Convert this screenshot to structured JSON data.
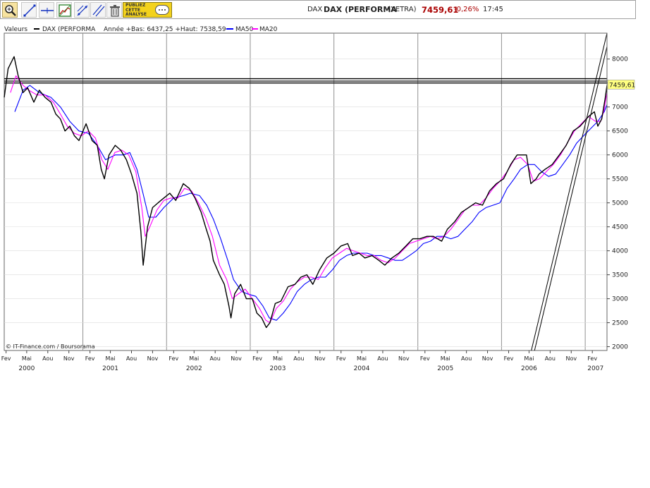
{
  "toolbar": {
    "tools": [
      {
        "name": "zoom-tool-icon",
        "active": true
      },
      {
        "name": "trend-line-tool-icon",
        "active": false
      },
      {
        "name": "horizontal-line-tool-icon",
        "active": false
      },
      {
        "name": "indicator-tool-icon",
        "active": false
      },
      {
        "name": "fibonacci-tool-icon",
        "active": false
      },
      {
        "name": "parallel-lines-tool-icon",
        "active": false
      },
      {
        "name": "delete-tool-icon",
        "active": false
      }
    ],
    "promo": {
      "line1": "PUBLIEZ",
      "line2": "CETTE",
      "line3": "ANALYSE"
    },
    "title": {
      "symbol": "DAX",
      "name": "DAX (PERFORMA",
      "exchange": "(XETRA)",
      "price": "7459,61",
      "change": "-0,26%",
      "time": "17:45"
    },
    "colors": {
      "price": "#aa0000",
      "change": "#aa0000"
    }
  },
  "chart_data": {
    "type": "line",
    "legend": {
      "label": "Valeurs",
      "series_name": "DAX (PERFORMA",
      "stats": "Année +Bas: 6437,25 +Haut: 7538,59",
      "ma50": "MA50",
      "ma20": "MA20",
      "colors": {
        "price": "#000000",
        "ma50": "#0000ff",
        "ma20": "#ff00ff"
      }
    },
    "ylim": [
      1920,
      8540
    ],
    "yticks": [
      2000,
      2500,
      3000,
      3500,
      4000,
      4500,
      5000,
      5500,
      6000,
      6500,
      7000,
      7500,
      8000
    ],
    "ytick_labels": [
      "2000",
      "2500",
      "3000",
      "3500",
      "4000",
      "4500",
      "5000",
      "5500",
      "6000",
      "6500",
      "7000",
      "7500",
      "8000"
    ],
    "last_price_label": "7459,61",
    "last_price": 7459.61,
    "horizontal_lines": [
      7590,
      7540,
      7500
    ],
    "x_start": "2000-01-24",
    "x_end": "2007-04-06",
    "month_ticks": [
      {
        "date": "2000-02-01",
        "label": "Fev"
      },
      {
        "date": "2000-05-01",
        "label": "Mai"
      },
      {
        "date": "2000-08-01",
        "label": "Aou"
      },
      {
        "date": "2000-11-01",
        "label": "Nov"
      },
      {
        "date": "2001-02-01",
        "label": "Fev"
      },
      {
        "date": "2001-05-01",
        "label": "Mai"
      },
      {
        "date": "2001-08-01",
        "label": "Aou"
      },
      {
        "date": "2001-11-01",
        "label": "Nov"
      },
      {
        "date": "2002-02-01",
        "label": "Fev"
      },
      {
        "date": "2002-05-01",
        "label": "Mai"
      },
      {
        "date": "2002-08-01",
        "label": "Aou"
      },
      {
        "date": "2002-11-01",
        "label": "Nov"
      },
      {
        "date": "2003-02-01",
        "label": "Fev"
      },
      {
        "date": "2003-05-01",
        "label": "Mai"
      },
      {
        "date": "2003-08-01",
        "label": "Aou"
      },
      {
        "date": "2003-11-01",
        "label": "Nov"
      },
      {
        "date": "2004-02-01",
        "label": "Fev"
      },
      {
        "date": "2004-05-01",
        "label": "Mai"
      },
      {
        "date": "2004-08-01",
        "label": "Aou"
      },
      {
        "date": "2004-11-01",
        "label": "Nov"
      },
      {
        "date": "2005-02-01",
        "label": "Fev"
      },
      {
        "date": "2005-05-01",
        "label": "Mai"
      },
      {
        "date": "2005-08-01",
        "label": "Aou"
      },
      {
        "date": "2005-11-01",
        "label": "Nov"
      },
      {
        "date": "2006-02-01",
        "label": "Fev"
      },
      {
        "date": "2006-05-01",
        "label": "Mai"
      },
      {
        "date": "2006-08-01",
        "label": "Aou"
      },
      {
        "date": "2006-11-01",
        "label": "Nov"
      },
      {
        "date": "2007-02-01",
        "label": "Fev"
      }
    ],
    "year_labels": [
      {
        "date": "2000-05-01",
        "label": "2000"
      },
      {
        "date": "2001-05-01",
        "label": "2001"
      },
      {
        "date": "2002-05-01",
        "label": "2002"
      },
      {
        "date": "2003-05-01",
        "label": "2003"
      },
      {
        "date": "2004-05-01",
        "label": "2004"
      },
      {
        "date": "2005-05-01",
        "label": "2005"
      },
      {
        "date": "2006-05-01",
        "label": "2006"
      },
      {
        "date": "2007-02-15",
        "label": "2007"
      }
    ],
    "year_boundaries": [
      "2001-01-01",
      "2002-01-01",
      "2003-01-01",
      "2004-01-01",
      "2005-01-01",
      "2006-01-01",
      "2007-01-01"
    ],
    "series": [
      {
        "name": "DAX (PERFORMA",
        "x": [
          "2000-01-24",
          "2000-02-10",
          "2000-03-07",
          "2000-03-25",
          "2000-04-15",
          "2000-05-05",
          "2000-06-01",
          "2000-06-25",
          "2000-07-20",
          "2000-08-15",
          "2000-09-05",
          "2000-09-25",
          "2000-10-15",
          "2000-11-05",
          "2000-11-25",
          "2000-12-15",
          "2001-01-15",
          "2001-02-10",
          "2001-03-05",
          "2001-03-22",
          "2001-04-05",
          "2001-04-25",
          "2001-05-22",
          "2001-06-15",
          "2001-07-10",
          "2001-08-01",
          "2001-08-25",
          "2001-09-11",
          "2001-09-21",
          "2001-10-10",
          "2001-11-01",
          "2001-11-25",
          "2001-12-20",
          "2002-01-15",
          "2002-02-10",
          "2002-03-15",
          "2002-04-10",
          "2002-05-05",
          "2002-06-01",
          "2002-06-20",
          "2002-07-10",
          "2002-07-24",
          "2002-08-20",
          "2002-09-10",
          "2002-09-30",
          "2002-10-09",
          "2002-10-25",
          "2002-11-20",
          "2002-12-15",
          "2003-01-10",
          "2003-01-30",
          "2003-02-20",
          "2003-03-12",
          "2003-03-28",
          "2003-04-20",
          "2003-05-15",
          "2003-06-15",
          "2003-07-15",
          "2003-08-10",
          "2003-09-05",
          "2003-10-01",
          "2003-10-30",
          "2003-12-01",
          "2004-01-01",
          "2004-02-01",
          "2004-03-01",
          "2004-03-22",
          "2004-04-20",
          "2004-05-15",
          "2004-06-15",
          "2004-07-15",
          "2004-08-10",
          "2004-09-10",
          "2004-10-10",
          "2004-11-10",
          "2004-12-10",
          "2005-01-10",
          "2005-02-10",
          "2005-03-10",
          "2005-04-15",
          "2005-05-10",
          "2005-06-10",
          "2005-07-10",
          "2005-08-10",
          "2005-09-10",
          "2005-10-10",
          "2005-11-10",
          "2005-12-10",
          "2006-01-10",
          "2006-02-10",
          "2006-03-10",
          "2006-04-20",
          "2006-05-09",
          "2006-06-01",
          "2006-06-14",
          "2006-07-10",
          "2006-08-10",
          "2006-09-10",
          "2006-10-10",
          "2006-11-10",
          "2006-12-10",
          "2007-01-15",
          "2007-02-10",
          "2007-02-25",
          "2007-03-14",
          "2007-03-28",
          "2007-04-06"
        ],
        "values": [
          7200,
          7800,
          8050,
          7650,
          7300,
          7400,
          7100,
          7350,
          7200,
          7100,
          6850,
          6750,
          6500,
          6600,
          6400,
          6300,
          6650,
          6300,
          6200,
          5700,
          5500,
          6000,
          6200,
          6100,
          5900,
          5600,
          5200,
          4400,
          3700,
          4500,
          4900,
          5000,
          5100,
          5200,
          5050,
          5400,
          5300,
          5100,
          4800,
          4500,
          4200,
          3800,
          3500,
          3300,
          2850,
          2600,
          3100,
          3300,
          3000,
          3000,
          2700,
          2600,
          2400,
          2500,
          2900,
          2950,
          3250,
          3300,
          3450,
          3500,
          3300,
          3600,
          3850,
          3950,
          4100,
          4150,
          3900,
          3950,
          3850,
          3900,
          3800,
          3700,
          3850,
          3950,
          4100,
          4250,
          4250,
          4300,
          4300,
          4200,
          4450,
          4600,
          4800,
          4900,
          5000,
          4950,
          5250,
          5400,
          5500,
          5800,
          6000,
          6000,
          5400,
          5500,
          5600,
          5700,
          5800,
          6000,
          6200,
          6500,
          6600,
          6800,
          6900,
          6600,
          6750,
          7150,
          7450
        ]
      },
      {
        "name": "MA50",
        "x": [
          "2000-03-10",
          "2000-04-15",
          "2000-05-15",
          "2000-06-25",
          "2000-08-15",
          "2000-09-25",
          "2000-11-05",
          "2000-12-15",
          "2001-01-25",
          "2001-03-05",
          "2001-04-10",
          "2001-05-22",
          "2001-06-25",
          "2001-07-25",
          "2001-08-25",
          "2001-09-20",
          "2001-10-15",
          "2001-11-15",
          "2001-12-20",
          "2002-02-01",
          "2002-03-15",
          "2002-04-15",
          "2002-05-25",
          "2002-06-25",
          "2002-07-25",
          "2002-08-25",
          "2002-09-25",
          "2002-10-20",
          "2002-11-25",
          "2002-12-20",
          "2003-01-25",
          "2003-02-25",
          "2003-03-25",
          "2003-04-25",
          "2003-05-25",
          "2003-06-25",
          "2003-07-25",
          "2003-08-25",
          "2003-09-25",
          "2003-10-25",
          "2003-11-25",
          "2003-12-25",
          "2004-01-25",
          "2004-02-25",
          "2004-03-25",
          "2004-04-25",
          "2004-05-25",
          "2004-06-25",
          "2004-07-25",
          "2004-08-25",
          "2004-09-25",
          "2004-10-25",
          "2004-11-25",
          "2004-12-25",
          "2005-01-25",
          "2005-02-25",
          "2005-03-25",
          "2005-04-25",
          "2005-05-25",
          "2005-06-25",
          "2005-07-25",
          "2005-08-25",
          "2005-09-25",
          "2005-10-25",
          "2005-11-25",
          "2005-12-25",
          "2006-01-25",
          "2006-02-25",
          "2006-03-25",
          "2006-04-25",
          "2006-05-25",
          "2006-06-25",
          "2006-07-25",
          "2006-08-25",
          "2006-09-25",
          "2006-10-25",
          "2006-11-25",
          "2006-12-25",
          "2007-01-25",
          "2007-02-25",
          "2007-03-25",
          "2007-04-06"
        ],
        "values": [
          6900,
          7350,
          7450,
          7300,
          7200,
          7000,
          6700,
          6500,
          6450,
          6200,
          5900,
          6000,
          6000,
          6050,
          5700,
          5200,
          4700,
          4700,
          4900,
          5100,
          5150,
          5200,
          5150,
          4950,
          4650,
          4250,
          3800,
          3400,
          3150,
          3100,
          3050,
          2850,
          2600,
          2550,
          2700,
          2900,
          3150,
          3300,
          3400,
          3450,
          3450,
          3600,
          3800,
          3900,
          3950,
          3950,
          3950,
          3900,
          3900,
          3850,
          3800,
          3800,
          3900,
          4000,
          4150,
          4200,
          4300,
          4300,
          4250,
          4300,
          4450,
          4600,
          4800,
          4900,
          4950,
          5000,
          5300,
          5500,
          5700,
          5800,
          5800,
          5650,
          5550,
          5600,
          5800,
          6000,
          6250,
          6400,
          6550,
          6700,
          6900,
          7050
        ]
      },
      {
        "name": "MA20",
        "x": [
          "2000-02-20",
          "2000-03-15",
          "2000-04-15",
          "2000-05-10",
          "2000-06-15",
          "2000-07-20",
          "2000-08-25",
          "2000-09-25",
          "2000-10-25",
          "2000-11-25",
          "2000-12-25",
          "2001-01-25",
          "2001-02-25",
          "2001-03-25",
          "2001-04-20",
          "2001-05-20",
          "2001-06-20",
          "2001-07-20",
          "2001-08-20",
          "2001-09-15",
          "2001-09-30",
          "2001-10-20",
          "2001-11-20",
          "2001-12-20",
          "2002-01-20",
          "2002-02-20",
          "2002-03-20",
          "2002-04-20",
          "2002-05-20",
          "2002-06-20",
          "2002-07-20",
          "2002-08-20",
          "2002-09-20",
          "2002-10-15",
          "2002-11-10",
          "2002-12-10",
          "2003-01-10",
          "2003-02-10",
          "2003-03-10",
          "2003-03-28",
          "2003-04-25",
          "2003-05-25",
          "2003-06-25",
          "2003-07-25",
          "2003-08-25",
          "2003-09-25",
          "2003-10-25",
          "2003-11-25",
          "2003-12-25",
          "2004-01-25",
          "2004-02-25",
          "2004-03-25",
          "2004-04-25",
          "2004-05-25",
          "2004-06-25",
          "2004-07-25",
          "2004-08-25",
          "2004-09-25",
          "2004-10-25",
          "2004-11-25",
          "2004-12-25",
          "2005-01-25",
          "2005-02-25",
          "2005-03-25",
          "2005-04-25",
          "2005-05-25",
          "2005-06-25",
          "2005-07-25",
          "2005-08-25",
          "2005-09-25",
          "2005-10-25",
          "2005-11-25",
          "2005-12-25",
          "2006-01-25",
          "2006-02-25",
          "2006-03-25",
          "2006-04-25",
          "2006-05-20",
          "2006-06-15",
          "2006-07-15",
          "2006-08-15",
          "2006-09-15",
          "2006-10-15",
          "2006-11-15",
          "2006-12-15",
          "2007-01-15",
          "2007-02-15",
          "2007-03-10",
          "2007-03-25",
          "2007-04-06"
        ],
        "values": [
          7300,
          7650,
          7450,
          7350,
          7250,
          7250,
          7100,
          6850,
          6600,
          6450,
          6400,
          6500,
          6350,
          5900,
          5700,
          6050,
          6100,
          6000,
          5650,
          4900,
          4300,
          4500,
          4850,
          5050,
          5100,
          5100,
          5300,
          5250,
          5000,
          4700,
          4300,
          3700,
          3400,
          3000,
          3100,
          3200,
          3000,
          2800,
          2550,
          2500,
          2800,
          2950,
          3200,
          3350,
          3450,
          3450,
          3400,
          3650,
          3850,
          3950,
          4050,
          4000,
          3950,
          3900,
          3900,
          3800,
          3750,
          3850,
          4000,
          4150,
          4200,
          4250,
          4300,
          4250,
          4300,
          4450,
          4650,
          4850,
          4950,
          4950,
          5100,
          5300,
          5450,
          5650,
          5900,
          5950,
          5800,
          5450,
          5500,
          5650,
          5800,
          6000,
          6250,
          6500,
          6650,
          6800,
          6700,
          6700,
          6950,
          7300
        ]
      }
    ],
    "trendlines": [
      {
        "x1": "2006-05-11",
        "y1": 1920,
        "x2": "2007-04-06",
        "y2": 8540
      },
      {
        "x1": "2006-05-25",
        "y1": 1920,
        "x2": "2007-04-06",
        "y2": 8260
      }
    ],
    "watermark": "© IT-Finance.com / Boursorama"
  }
}
